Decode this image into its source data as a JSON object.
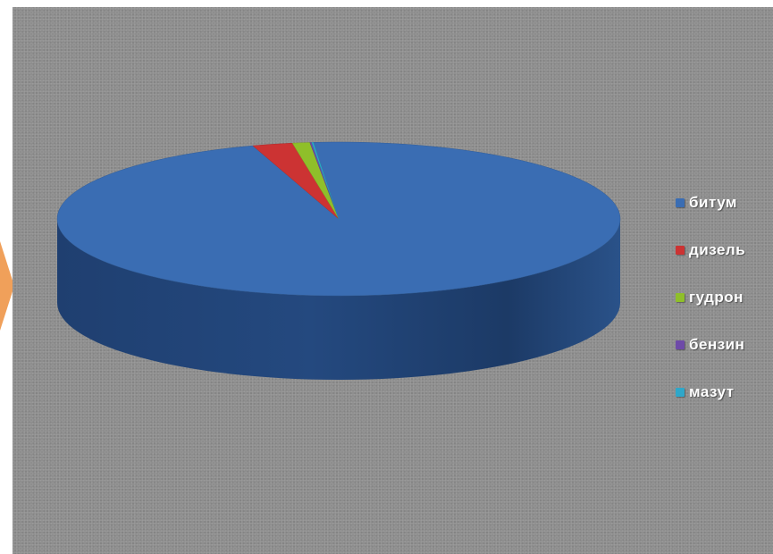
{
  "chart_data": {
    "type": "pie",
    "style": "3d",
    "categories": [
      "битум",
      "дизель",
      "гудрон",
      "бензин",
      "мазут"
    ],
    "values": [
      96.5,
      2.3,
      1.0,
      0.1,
      0.1
    ],
    "colors": [
      "#3a6db3",
      "#cc3333",
      "#8fbf2a",
      "#6e4aa8",
      "#2fa7c9"
    ],
    "legend_position": "right"
  },
  "decor": {
    "arrow_color": "#f0a05a"
  }
}
